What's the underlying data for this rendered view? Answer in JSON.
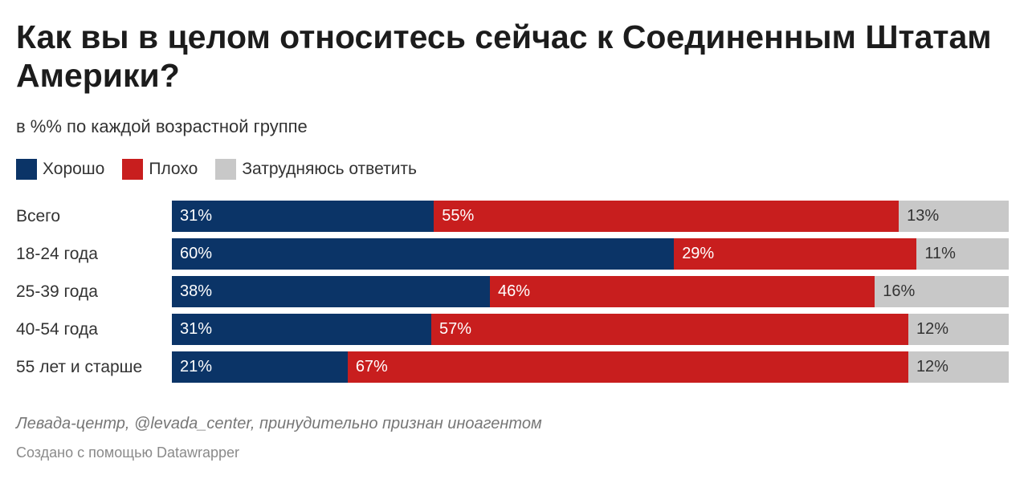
{
  "header": {
    "title": "Как вы в целом относитесь сейчас к Соединенным Штатам Америки?",
    "subtitle": "в %% по каждой возрастной группе"
  },
  "colors": {
    "good": "#0b3467",
    "bad": "#c81e1e",
    "unsure": "#c8c8c8"
  },
  "chart_data": {
    "type": "bar",
    "orientation": "horizontal",
    "stacked": true,
    "title": "Как вы в целом относитесь сейчас к Соединенным Штатам Америки?",
    "subtitle": "в %% по каждой возрастной группе",
    "legend_position": "top-left",
    "xlim": [
      0,
      100
    ],
    "categories": [
      "Всего",
      "18-24 года",
      "25-39 года",
      "40-54 года",
      "55 лет и старше"
    ],
    "series": [
      {
        "name": "Хорошо",
        "key": "good",
        "values": [
          31,
          60,
          38,
          31,
          21
        ]
      },
      {
        "name": "Плохо",
        "key": "bad",
        "values": [
          55,
          29,
          46,
          57,
          67
        ]
      },
      {
        "name": "Затрудняюсь ответить",
        "key": "unsure",
        "values": [
          13,
          11,
          16,
          12,
          12
        ]
      }
    ]
  },
  "footer": {
    "source": "Левада-центр, @levada_center, принудительно признан иноагентом",
    "credit": "Создано с помощью Datawrapper"
  }
}
